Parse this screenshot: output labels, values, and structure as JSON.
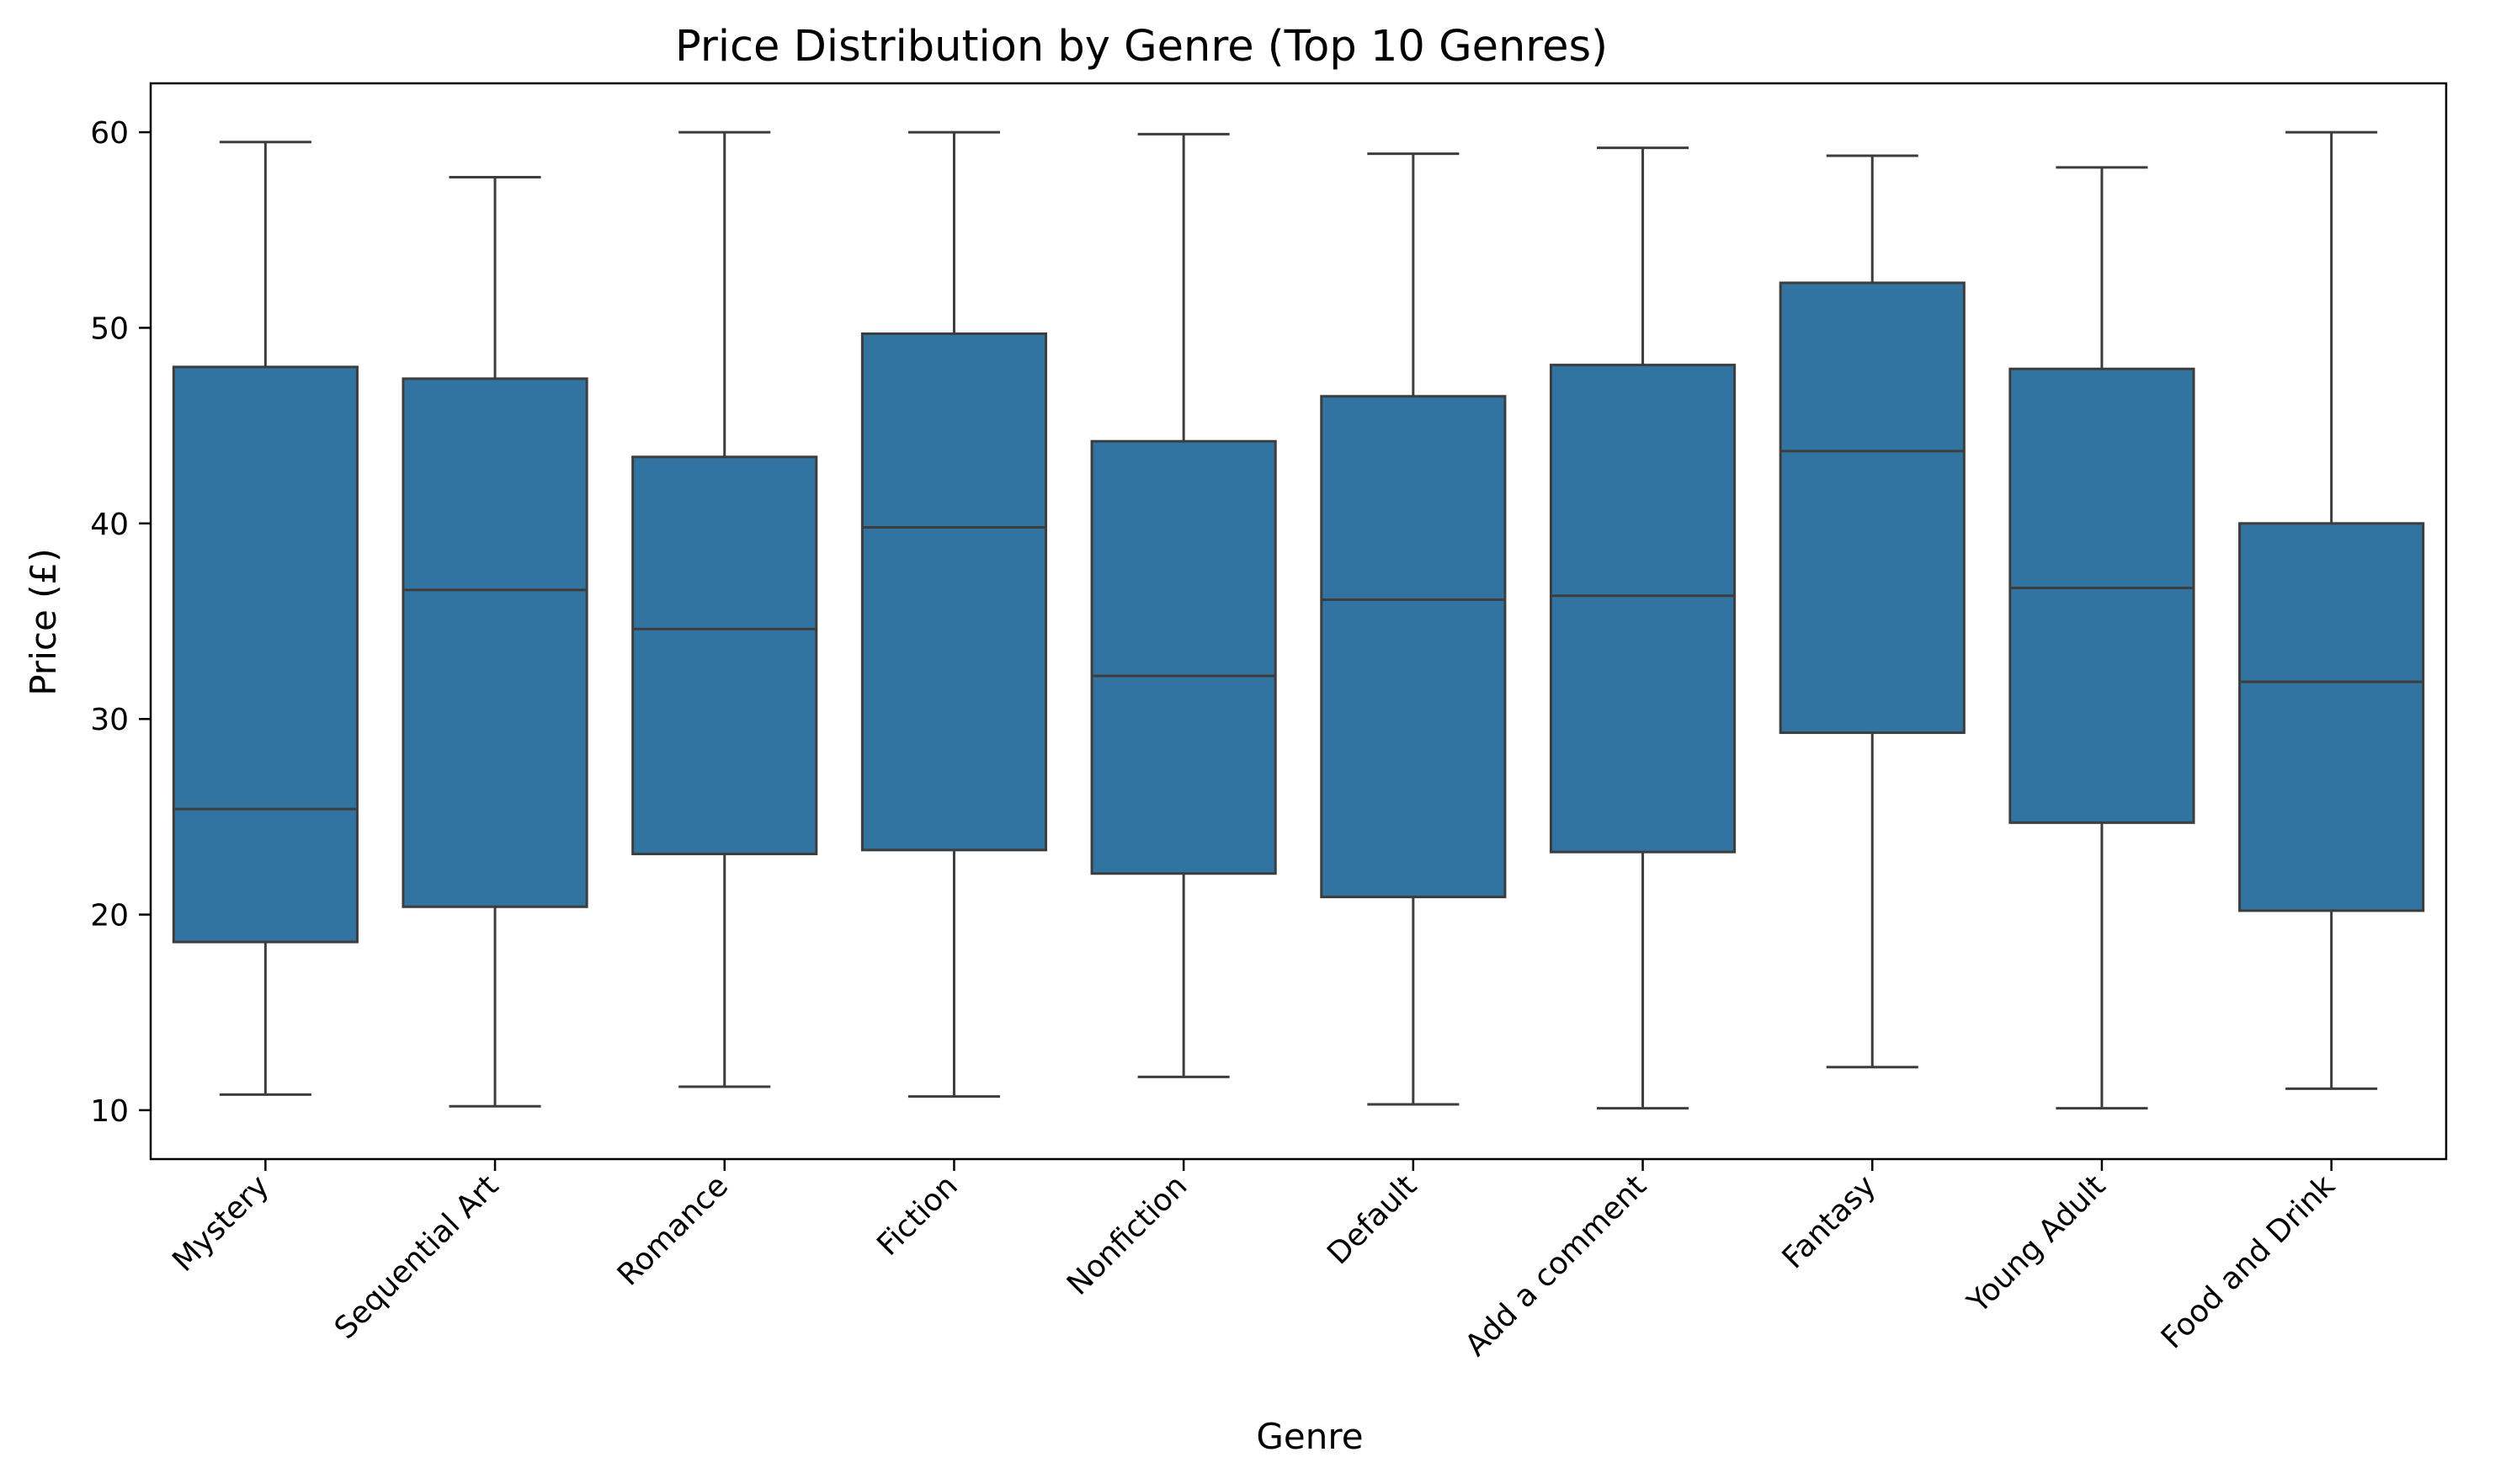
{
  "chart_data": {
    "type": "box",
    "title": "Price Distribution by Genre (Top 10 Genres)",
    "xlabel": "Genre",
    "ylabel": "Price (£)",
    "ylim": [
      7.5,
      62.5
    ],
    "yticks": [
      10,
      20,
      30,
      40,
      50,
      60
    ],
    "grid": false,
    "legend": "none",
    "categories": [
      "Mystery",
      "Sequential Art",
      "Romance",
      "Fiction",
      "Nonfiction",
      "Default",
      "Add a comment",
      "Fantasy",
      "Young Adult",
      "Food and Drink"
    ],
    "series": [
      {
        "color": "#3274a1",
        "boxes": [
          {
            "whisker_low": 10.8,
            "q1": 18.6,
            "median": 25.4,
            "q3": 48.0,
            "whisker_high": 59.5
          },
          {
            "whisker_low": 10.2,
            "q1": 20.4,
            "median": 36.6,
            "q3": 47.4,
            "whisker_high": 57.7
          },
          {
            "whisker_low": 11.2,
            "q1": 23.1,
            "median": 34.6,
            "q3": 43.4,
            "whisker_high": 60.0
          },
          {
            "whisker_low": 10.7,
            "q1": 23.3,
            "median": 39.8,
            "q3": 49.7,
            "whisker_high": 60.0
          },
          {
            "whisker_low": 11.7,
            "q1": 22.1,
            "median": 32.2,
            "q3": 44.2,
            "whisker_high": 59.9
          },
          {
            "whisker_low": 10.3,
            "q1": 20.9,
            "median": 36.1,
            "q3": 46.5,
            "whisker_high": 58.9
          },
          {
            "whisker_low": 10.1,
            "q1": 23.2,
            "median": 36.3,
            "q3": 48.1,
            "whisker_high": 59.2
          },
          {
            "whisker_low": 12.2,
            "q1": 29.3,
            "median": 43.7,
            "q3": 52.3,
            "whisker_high": 58.8
          },
          {
            "whisker_low": 10.1,
            "q1": 24.7,
            "median": 36.7,
            "q3": 47.9,
            "whisker_high": 58.2
          },
          {
            "whisker_low": 11.1,
            "q1": 20.2,
            "median": 31.9,
            "q3": 40.0,
            "whisker_high": 60.0
          }
        ]
      }
    ]
  }
}
